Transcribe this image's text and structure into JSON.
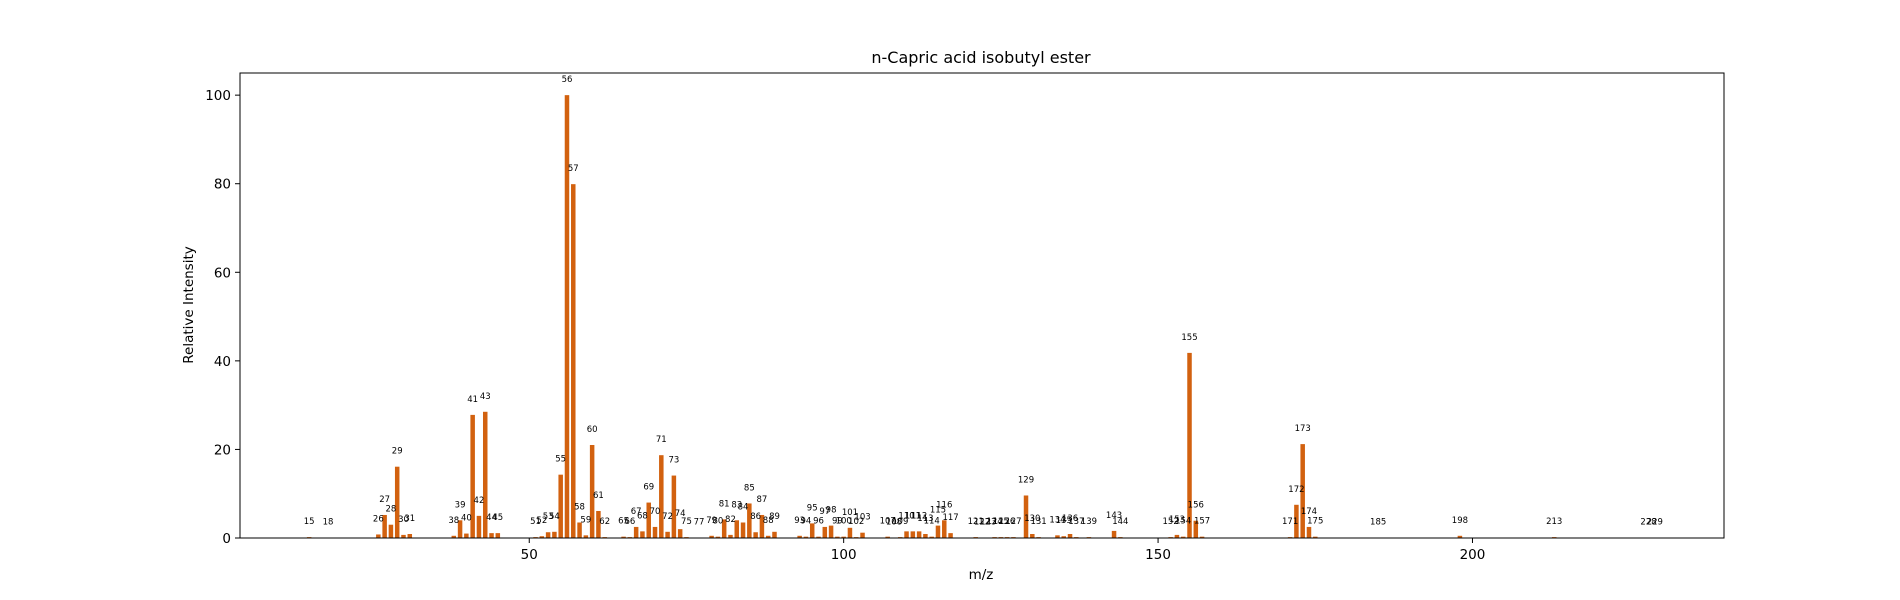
{
  "chart_data": {
    "type": "bar",
    "title": "n-Capric acid isobutyl ester",
    "xlabel": "m/z",
    "ylabel": "Relative Intensity",
    "xlim": [
      4,
      240
    ],
    "ylim": [
      0,
      105
    ],
    "xticks": [
      50,
      100,
      150,
      200
    ],
    "yticks": [
      0,
      20,
      40,
      60,
      80,
      100
    ],
    "grid": false,
    "bar_color": "#d2610f",
    "x": [
      15,
      18,
      26,
      27,
      28,
      29,
      30,
      31,
      38,
      39,
      40,
      41,
      42,
      43,
      44,
      45,
      51,
      52,
      53,
      54,
      55,
      56,
      57,
      58,
      59,
      60,
      61,
      62,
      65,
      66,
      67,
      68,
      69,
      70,
      71,
      72,
      73,
      74,
      75,
      77,
      79,
      80,
      81,
      82,
      83,
      84,
      85,
      86,
      87,
      88,
      89,
      93,
      94,
      95,
      96,
      97,
      98,
      99,
      100,
      101,
      102,
      103,
      107,
      108,
      109,
      110,
      111,
      112,
      113,
      114,
      115,
      116,
      117,
      121,
      122,
      123,
      124,
      125,
      126,
      127,
      129,
      130,
      131,
      134,
      135,
      136,
      137,
      139,
      143,
      144,
      152,
      153,
      154,
      155,
      156,
      157,
      171,
      172,
      173,
      174,
      175,
      185,
      198,
      213,
      228,
      229
    ],
    "values": [
      0.2,
      0.1,
      0.8,
      5.2,
      3.0,
      16.1,
      0.7,
      0.9,
      0.5,
      4.0,
      1.0,
      27.8,
      5.0,
      28.5,
      1.1,
      1.1,
      0.2,
      0.4,
      1.3,
      1.4,
      14.3,
      100,
      79.9,
      3.5,
      0.6,
      21.0,
      6.1,
      0.2,
      0.3,
      0.2,
      2.5,
      1.5,
      8.0,
      2.5,
      18.7,
      1.4,
      14.1,
      2.0,
      0.2,
      0.1,
      0.5,
      0.3,
      4.2,
      0.7,
      4.0,
      3.5,
      7.8,
      1.3,
      5.2,
      0.5,
      1.4,
      0.5,
      0.3,
      3.3,
      0.3,
      2.5,
      2.8,
      0.3,
      0.3,
      2.3,
      0.2,
      1.2,
      0.3,
      0.1,
      0.2,
      1.5,
      1.5,
      1.5,
      0.9,
      0.3,
      2.8,
      4.0,
      1.1,
      0.2,
      0.1,
      0.1,
      0.2,
      0.2,
      0.2,
      0.2,
      9.6,
      0.9,
      0.2,
      0.6,
      0.4,
      0.9,
      0.2,
      0.2,
      1.6,
      0.2,
      0.2,
      0.7,
      0.3,
      41.8,
      3.9,
      0.3,
      0.2,
      7.5,
      21.2,
      2.5,
      0.3,
      0.1,
      0.5,
      0.2,
      0.1,
      0.1
    ],
    "labels": [
      "15",
      "18",
      "26",
      "27",
      "28",
      "29",
      "30",
      "31",
      "38",
      "39",
      "40",
      "41",
      "42",
      "43",
      "44",
      "45",
      "51",
      "52",
      "53",
      "54",
      "55",
      "56",
      "57",
      "58",
      "59",
      "60",
      "61",
      "62",
      "65",
      "66",
      "67",
      "68",
      "69",
      "70",
      "71",
      "72",
      "73",
      "74",
      "75",
      "77",
      "79",
      "80",
      "81",
      "82",
      "83",
      "84",
      "85",
      "86",
      "87",
      "88",
      "89",
      "93",
      "94",
      "95",
      "96",
      "97",
      "98",
      "99",
      "100",
      "101",
      "102",
      "103",
      "107",
      "108",
      "109",
      "110",
      "111",
      "112",
      "113",
      "114",
      "115",
      "116",
      "117",
      "121",
      "122",
      "123",
      "124",
      "125",
      "126",
      "127",
      "129",
      "130",
      "131",
      "134",
      "135",
      "136",
      "137",
      "139",
      "143",
      "144",
      "152",
      "153",
      "154",
      "155",
      "156",
      "157",
      "171",
      "172",
      "173",
      "174",
      "175",
      "185",
      "198",
      "213",
      "228",
      "229"
    ]
  }
}
